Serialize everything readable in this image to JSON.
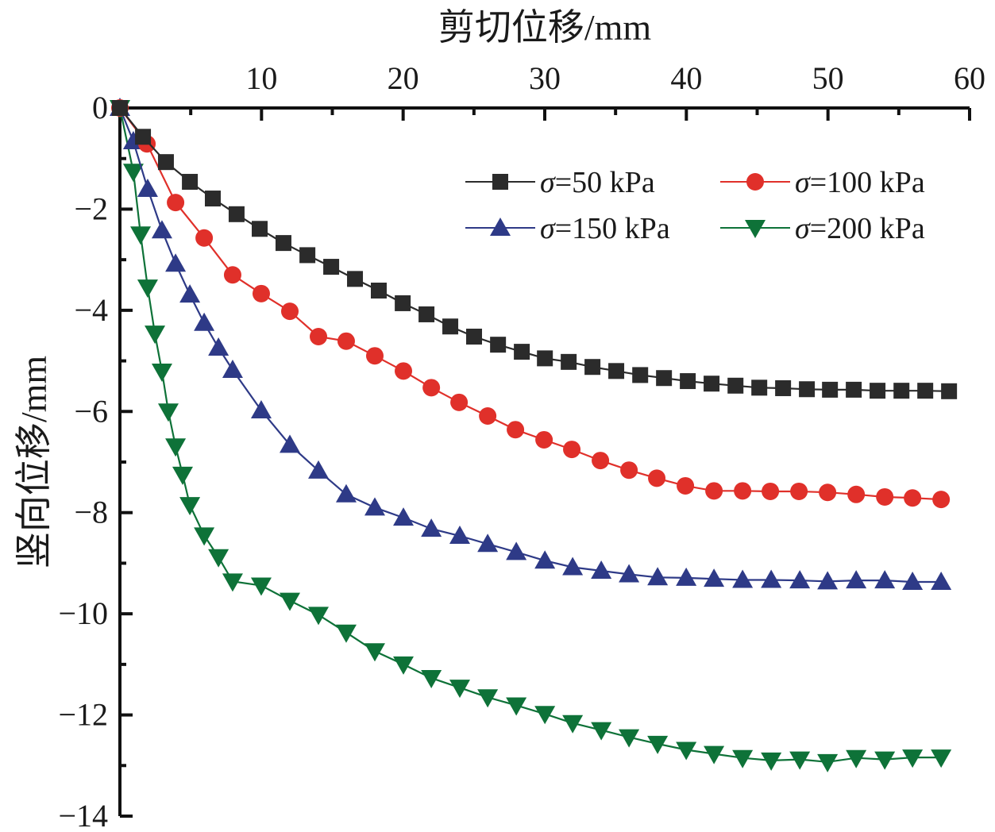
{
  "chart_data": {
    "type": "line",
    "title": "",
    "xlabel": "剪切位移/mm",
    "ylabel": "竖向位移/mm",
    "xlim": [
      0,
      60
    ],
    "ylim": [
      -14,
      0
    ],
    "x_axis_position": "top",
    "xticks": [
      10,
      20,
      30,
      40,
      50,
      60
    ],
    "xtick_labels": [
      "10",
      "20",
      "30",
      "40",
      "50",
      "60"
    ],
    "x_minor_ticks": [
      5,
      15,
      25,
      35,
      45,
      55
    ],
    "yticks": [
      0,
      -2,
      -4,
      -6,
      -8,
      -10,
      -12,
      -14
    ],
    "ytick_labels": [
      "0",
      "−2",
      "−4",
      "−6",
      "−8",
      "−10",
      "−12",
      "−14"
    ],
    "y_minor_ticks": [
      -1,
      -3,
      -5,
      -7,
      -9,
      -11,
      -13
    ],
    "grid": false,
    "legend_position": "top-right",
    "legend_columns": 2,
    "series": [
      {
        "name": "σ=50 kPa",
        "symbol": "σ",
        "label_rest": "=50 kPa",
        "marker": "square",
        "color": "#2b2b2b",
        "x": [
          0,
          1.63,
          3.25,
          4.94,
          6.56,
          8.24,
          9.87,
          11.55,
          13.24,
          14.92,
          16.6,
          18.28,
          19.97,
          21.65,
          23.33,
          25.01,
          26.7,
          28.38,
          30.01,
          31.69,
          33.37,
          35.05,
          36.74,
          38.42,
          40.1,
          41.78,
          43.47,
          45.15,
          46.83,
          48.51,
          50.14,
          51.82,
          53.5,
          55.19,
          56.87,
          58.55
        ],
        "y": [
          0,
          -0.57,
          -1.07,
          -1.46,
          -1.79,
          -2.1,
          -2.39,
          -2.67,
          -2.91,
          -3.14,
          -3.38,
          -3.61,
          -3.86,
          -4.08,
          -4.32,
          -4.52,
          -4.68,
          -4.82,
          -4.95,
          -5.02,
          -5.12,
          -5.2,
          -5.28,
          -5.34,
          -5.4,
          -5.45,
          -5.49,
          -5.53,
          -5.54,
          -5.56,
          -5.57,
          -5.57,
          -5.59,
          -5.59,
          -5.59,
          -5.6
        ]
      },
      {
        "name": "σ=100 kPa",
        "symbol": "σ",
        "label_rest": "=100 kPa",
        "marker": "circle",
        "color": "#e0302a",
        "x": [
          0,
          1.91,
          3.93,
          5.95,
          7.96,
          9.98,
          12.0,
          14.02,
          15.98,
          18.0,
          20.02,
          21.99,
          23.95,
          25.97,
          27.93,
          29.95,
          31.91,
          33.93,
          35.95,
          37.91,
          39.93,
          41.95,
          43.97,
          45.93,
          47.95,
          49.97,
          51.99,
          54.01,
          55.97,
          57.99
        ],
        "y": [
          0,
          -0.71,
          -1.87,
          -2.57,
          -3.3,
          -3.67,
          -4.02,
          -4.52,
          -4.61,
          -4.9,
          -5.2,
          -5.53,
          -5.82,
          -6.09,
          -6.36,
          -6.56,
          -6.75,
          -6.97,
          -7.16,
          -7.32,
          -7.47,
          -7.57,
          -7.57,
          -7.58,
          -7.58,
          -7.6,
          -7.64,
          -7.69,
          -7.71,
          -7.74
        ]
      },
      {
        "name": "σ=150 kPa",
        "symbol": "σ",
        "label_rest": "=150 kPa",
        "marker": "triangle-up",
        "color": "#2e3a87",
        "x": [
          0,
          0.95,
          1.96,
          2.97,
          3.93,
          4.94,
          5.95,
          6.96,
          7.96,
          9.98,
          12.0,
          14.02,
          15.98,
          18.0,
          20.02,
          21.99,
          24.0,
          25.97,
          27.99,
          30.01,
          31.97,
          33.99,
          35.95,
          37.97,
          39.99,
          41.95,
          43.97,
          45.99,
          48.01,
          49.97,
          51.99,
          54.01,
          55.97,
          57.99
        ],
        "y": [
          0,
          -0.66,
          -1.6,
          -2.42,
          -3.08,
          -3.69,
          -4.25,
          -4.74,
          -5.18,
          -5.98,
          -6.66,
          -7.17,
          -7.64,
          -7.9,
          -8.1,
          -8.32,
          -8.46,
          -8.62,
          -8.78,
          -8.95,
          -9.08,
          -9.15,
          -9.22,
          -9.28,
          -9.29,
          -9.31,
          -9.33,
          -9.33,
          -9.34,
          -9.36,
          -9.34,
          -9.34,
          -9.37,
          -9.37
        ]
      },
      {
        "name": "σ=200 kPa",
        "symbol": "σ",
        "label_rest": "=200 kPa",
        "marker": "triangle-down",
        "color": "#0e7238",
        "x": [
          0,
          0.95,
          1.46,
          1.96,
          2.47,
          2.97,
          3.42,
          3.93,
          4.43,
          4.94,
          5.95,
          6.96,
          7.96,
          9.98,
          12.0,
          14.02,
          15.98,
          18.0,
          20.02,
          21.99,
          24.0,
          25.97,
          27.99,
          30.01,
          31.97,
          33.99,
          35.95,
          37.97,
          39.99,
          41.95,
          43.97,
          45.99,
          48.01,
          49.97,
          51.99,
          54.01,
          55.97,
          57.99
        ],
        "y": [
          0,
          -1.26,
          -2.5,
          -3.55,
          -4.46,
          -5.21,
          -6.0,
          -6.69,
          -7.25,
          -7.85,
          -8.45,
          -8.88,
          -9.36,
          -9.44,
          -9.74,
          -10.02,
          -10.37,
          -10.74,
          -11.0,
          -11.27,
          -11.46,
          -11.65,
          -11.81,
          -11.98,
          -12.16,
          -12.3,
          -12.44,
          -12.57,
          -12.69,
          -12.77,
          -12.85,
          -12.9,
          -12.88,
          -12.93,
          -12.85,
          -12.88,
          -12.84,
          -12.84
        ]
      }
    ]
  }
}
